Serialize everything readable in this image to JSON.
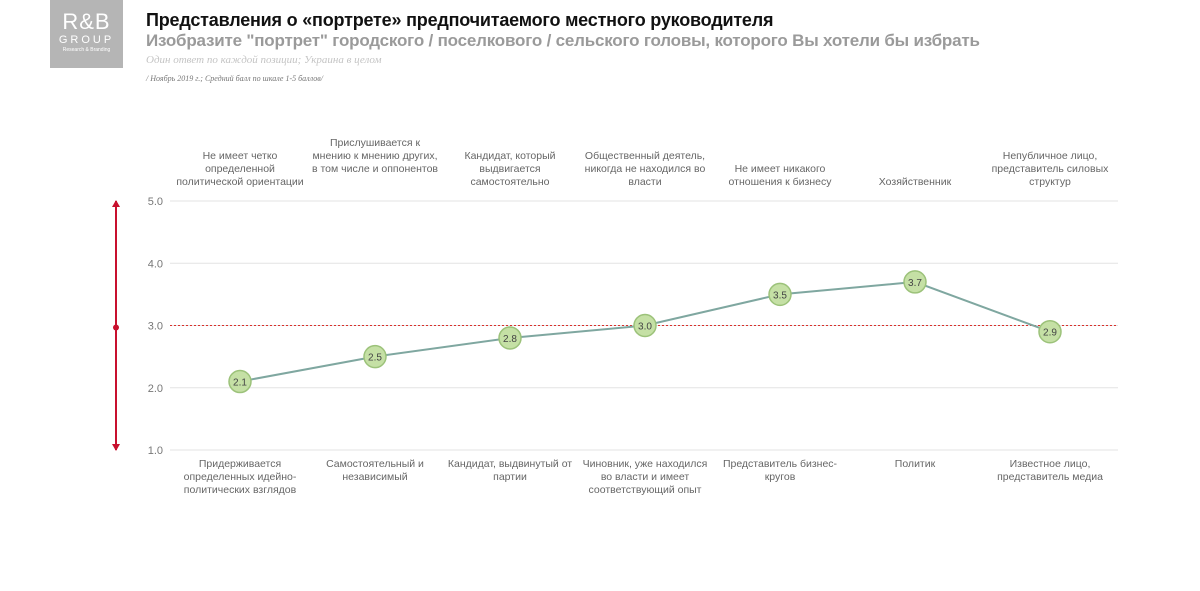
{
  "logo": {
    "line1": "R&B",
    "line2": "GROUP",
    "line3": "Research & Branding"
  },
  "header": {
    "title": "Представления о «портрете» предпочитаемого местного руководителя",
    "subtitle": "Изобразите \"портрет\" городского / поселкового / сельского головы, которого Вы хотели бы избрать",
    "note": "Один ответ по каждой позиции; Украина в целом",
    "base": "/ Ноябрь 2019 г.; Средний балл по шкале 1-5 баллов/"
  },
  "chart_data": {
    "type": "line",
    "top_labels": [
      "Не имеет четко определенной политической ориентации",
      "Прислушивается к мнению к мнению других, в том числе и оппонентов",
      "Кандидат, который выдвигается самостоятельно",
      "Общественный деятель, никогда не находился во власти",
      "Не имеет никакого отношения к бизнесу",
      "Хозяйственник",
      "Непубличное лицо, представитель силовых структур"
    ],
    "categories": [
      "Придерживается определенных идейно-политических взглядов",
      "Самостоятельный и независимый",
      "Кандидат, выдвинутый от партии",
      "Чиновник, уже находился во власти и имеет соответствующий опыт",
      "Представитель бизнес-кругов",
      "Политик",
      "Известное лицо, представитель медиа"
    ],
    "values": [
      2.1,
      2.5,
      2.8,
      3.0,
      3.5,
      3.7,
      2.9
    ],
    "value_labels": [
      "2.1",
      "2.5",
      "2.8",
      "3.0",
      "3.5",
      "3.7",
      "2.9"
    ],
    "ylim": [
      1,
      5
    ],
    "yticks": [
      "1.0",
      "2.0",
      "3.0",
      "4.0",
      "5.0"
    ],
    "reference_line": 3.0,
    "grid": true,
    "colors": {
      "line": "#7fa7a0",
      "marker": "#c5e0a5",
      "marker_edge": "#9cc27a",
      "reference": "#d9302c",
      "arrow": "#c8102e",
      "grid": "#e3e3e3"
    }
  }
}
